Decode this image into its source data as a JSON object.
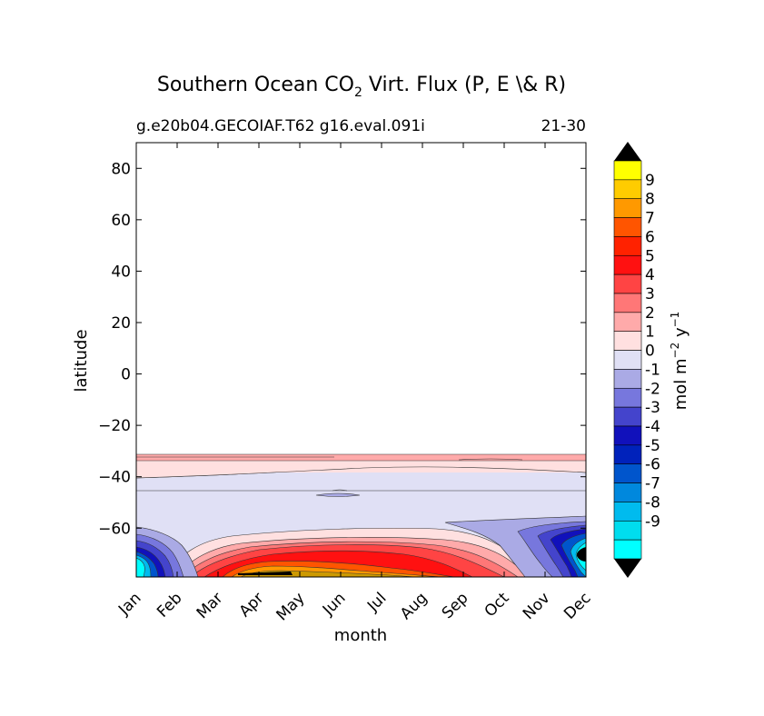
{
  "chart_data": {
    "type": "contour",
    "title": "Southern Ocean CO",
    "title_subscript": "2",
    "title_rest": " Virt. Flux (P, E \\& R)",
    "subtitle_left": "g.e20b04.GECOIAF.T62 g16.eval.091i",
    "subtitle_right": "21-30",
    "xlabel": "month",
    "ylabel": "latitude",
    "x_ticks": [
      "Jan",
      "Feb",
      "Mar",
      "Apr",
      "May",
      "Jun",
      "Jul",
      "Aug",
      "Sep",
      "Oct",
      "Nov",
      "Dec"
    ],
    "y_ticks": [
      80,
      60,
      40,
      20,
      0,
      -20,
      -40,
      -60
    ],
    "y_tick_labels": [
      "80",
      "60",
      "40",
      "20",
      "0",
      "−20",
      "−40",
      "−60"
    ],
    "ylim": [
      -79,
      90
    ],
    "data_extent_lat": [
      -79,
      -31.5
    ],
    "colorbar": {
      "label_main": "mol m",
      "label_exp1": "−2",
      "label_y": " y",
      "label_exp2": "−1",
      "tick_labels": [
        "9",
        "8",
        "7",
        "6",
        "5",
        "4",
        "3",
        "2",
        "1",
        "0",
        "-1",
        "-2",
        "-3",
        "-4",
        "-5",
        "-6",
        "-7",
        "-8",
        "-9"
      ],
      "colors": [
        "#ffff00",
        "#ffcc00",
        "#ff9900",
        "#ff5500",
        "#ff2200",
        "#ff1111",
        "#ff4444",
        "#ff7777",
        "#ffaaaa",
        "#ffe0e0",
        "#e0e0f5",
        "#aaaae5",
        "#7777dd",
        "#4444cc",
        "#1111bb",
        "#0022bb",
        "#0055cc",
        "#0088dd",
        "#00bbee",
        "#00ddee",
        "#00ffff"
      ],
      "extend": "both"
    },
    "bands": [
      {
        "name": "band-1-pos",
        "lat_top": -31.5,
        "lat_bot": -33.5,
        "value": 2
      },
      {
        "name": "band-0-pos",
        "lat_top": -33.5,
        "lat_bot": -38,
        "value": 0.5
      },
      {
        "name": "band-neg-1",
        "lat_top": -38,
        "lat_bot": -79,
        "value": -0.5
      }
    ],
    "features": [
      {
        "name": "winter-positive-flux",
        "months": [
          "Mar",
          "Oct"
        ],
        "lat_range": [
          -79,
          -60
        ],
        "peak_value": 9
      },
      {
        "name": "summer-negative-flux-jan",
        "months": [
          "Jan",
          "Feb"
        ],
        "lat_range": [
          -79,
          -60
        ],
        "peak_value": -9
      },
      {
        "name": "summer-negative-flux-dec",
        "months": [
          "Oct",
          "Dec"
        ],
        "lat_range": [
          -79,
          -55
        ],
        "peak_value": -9
      }
    ]
  }
}
